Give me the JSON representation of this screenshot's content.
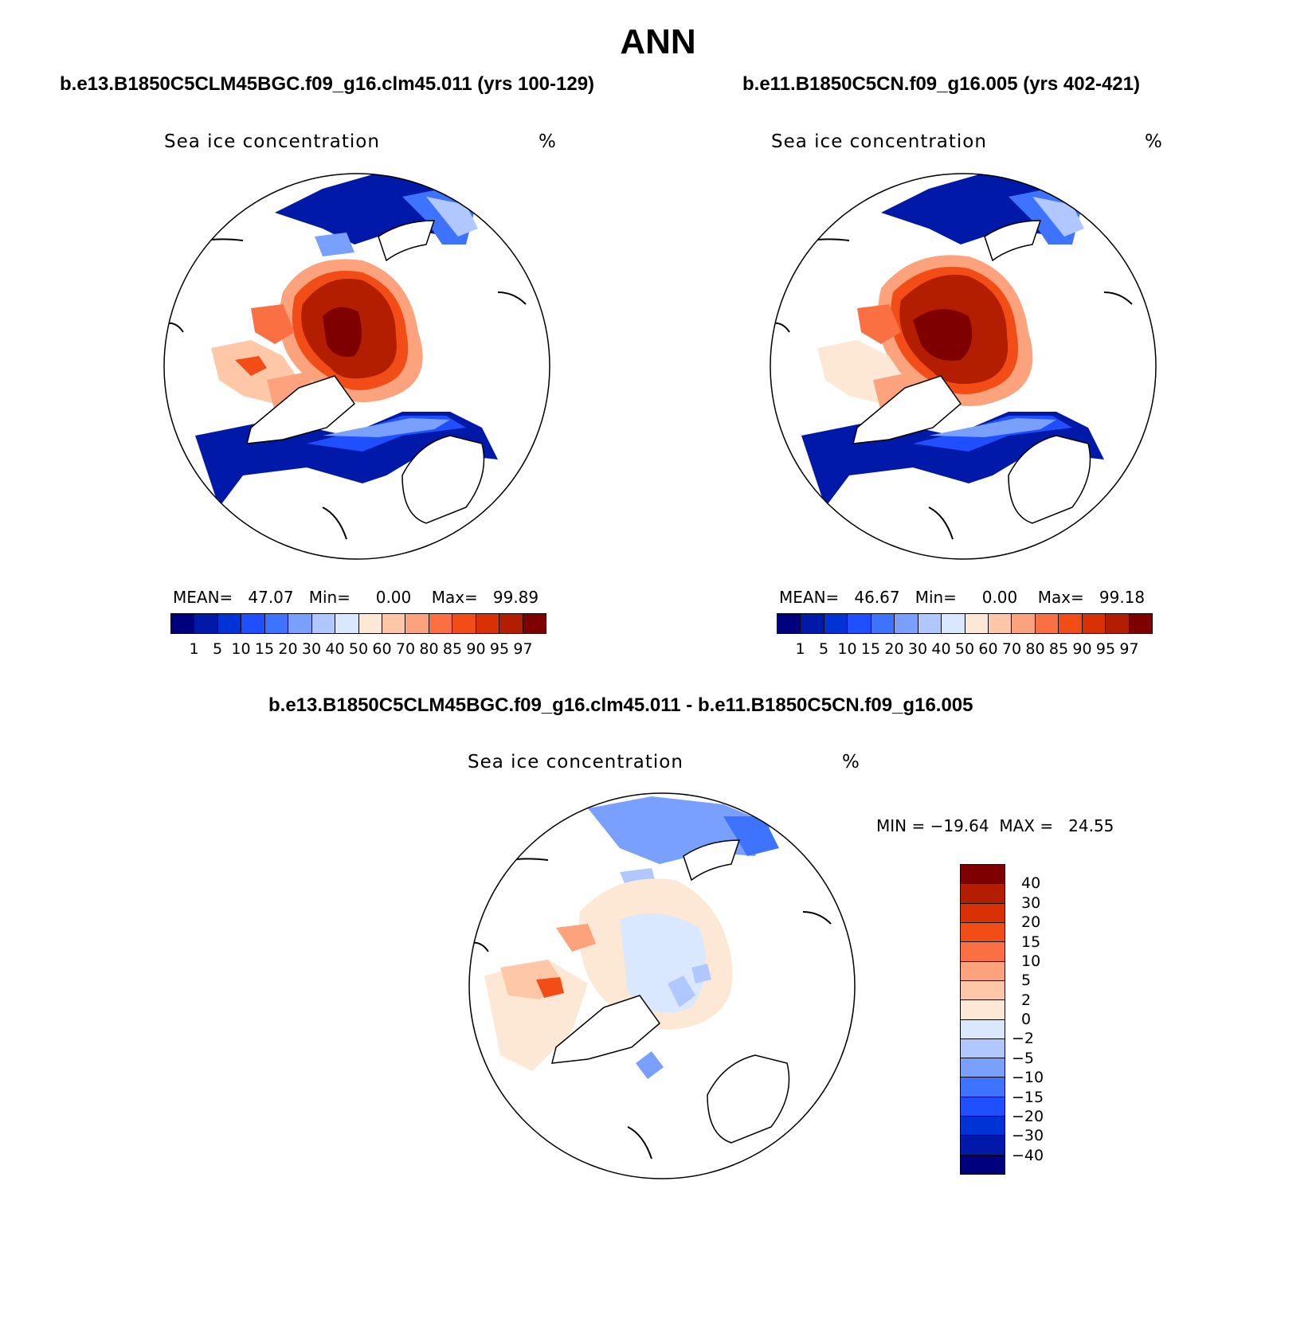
{
  "title": "ANN",
  "panels": [
    {
      "case": "b.e13.B1850C5CLM45BGC.f09_g16.clm45.011 (yrs 100-129)",
      "label": "Sea ice concentration",
      "units": "%",
      "stats": "MEAN=   47.07   Min=     0.00    Max=   99.89"
    },
    {
      "case": "b.e11.B1850C5CN.f09_g16.005 (yrs 402-421)",
      "label": "Sea ice concentration",
      "units": "%",
      "stats": "MEAN=   46.67   Min=     0.00    Max=   99.18"
    }
  ],
  "diff": {
    "case": "b.e13.B1850C5CLM45BGC.f09_g16.clm45.011 - b.e11.B1850C5CN.f09_g16.005",
    "label": "Sea ice concentration",
    "units": "%",
    "stats": "MIN = −19.64  MAX =   24.55"
  },
  "colorbar_abs": {
    "levels": [
      "1",
      "5",
      "10",
      "15",
      "20",
      "30",
      "40",
      "50",
      "60",
      "70",
      "80",
      "85",
      "90",
      "95",
      "97"
    ],
    "colors": [
      "#00007f",
      "#0019a8",
      "#0033d6",
      "#1f4fff",
      "#3d73ff",
      "#7aa0ff",
      "#b0c8ff",
      "#d9e8ff",
      "#fde8d5",
      "#fdc7a8",
      "#fca27c",
      "#fb7043",
      "#f24c17",
      "#d93006",
      "#b31d00",
      "#7f0000"
    ]
  },
  "colorbar_diff": {
    "levels": [
      "40",
      "30",
      "20",
      "15",
      "10",
      "5",
      "2",
      "0",
      "−2",
      "−5",
      "−10",
      "−15",
      "−20",
      "−30",
      "−40"
    ],
    "colors": [
      "#7f0000",
      "#b31d00",
      "#d93006",
      "#f24c17",
      "#fb7043",
      "#fca27c",
      "#fdc7a8",
      "#fde8d5",
      "#d9e8ff",
      "#b0c8ff",
      "#7aa0ff",
      "#3d73ff",
      "#1f4fff",
      "#0033d6",
      "#0019a8",
      "#00007f"
    ]
  }
}
